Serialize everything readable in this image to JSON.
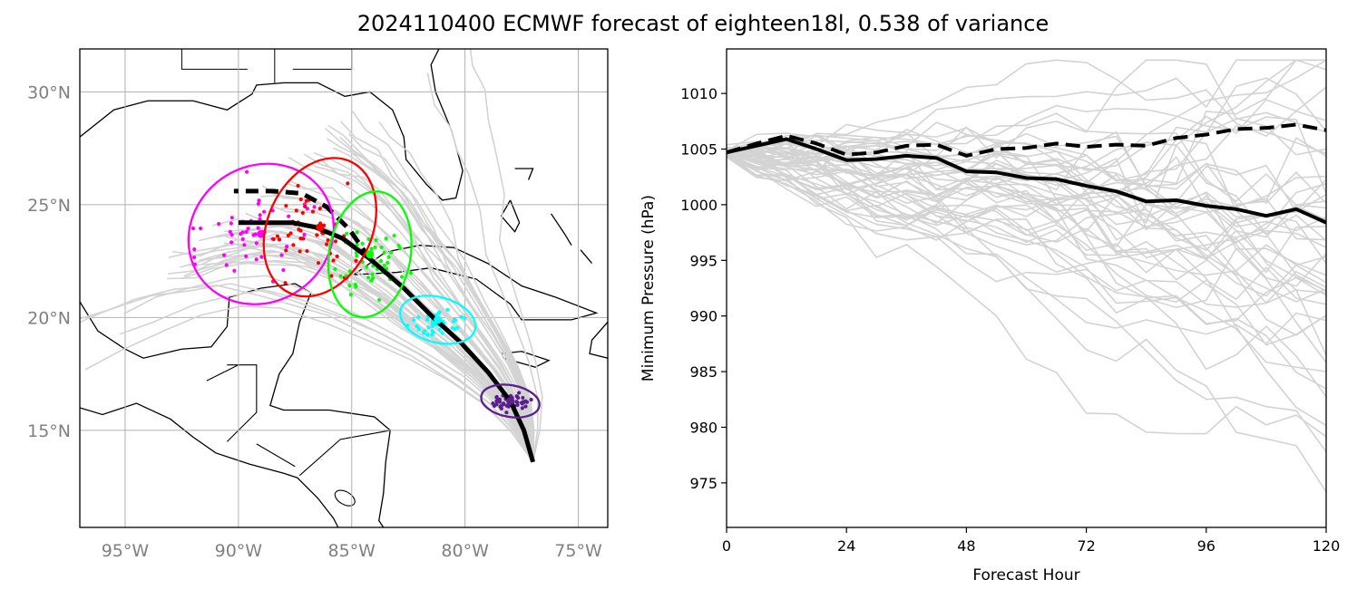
{
  "title": "2024110400 ECMWF forecast of eighteen18l, 0.538 of variance",
  "colors": {
    "ensemble": "#d3d3d3",
    "mean": "#000000",
    "ellipses": [
      "#ff00ff",
      "#ff0000",
      "#00ff00",
      "#00ffff",
      "#5b1f8c"
    ],
    "grid": "#b0b0b0",
    "map_ticks": "#808080"
  },
  "chart_data": [
    {
      "type": "scatter",
      "name": "track-map",
      "xlim": [
        -97,
        -73.7
      ],
      "ylim": [
        10.7,
        31.9
      ],
      "xticks": [
        -95,
        -90,
        -85,
        -80,
        -75
      ],
      "xtick_labels": [
        "95°W",
        "90°W",
        "85°W",
        "80°W",
        "75°W"
      ],
      "yticks": [
        15,
        20,
        25,
        30
      ],
      "ytick_labels": [
        "15°N",
        "20°N",
        "25°N",
        "30°N"
      ],
      "grid": true,
      "mean_tracks": [
        {
          "style": "solid",
          "points": [
            [
              -77.0,
              13.6
            ],
            [
              -77.4,
              15.0
            ],
            [
              -78.0,
              16.3
            ],
            [
              -79.0,
              17.6
            ],
            [
              -80.2,
              18.9
            ],
            [
              -81.4,
              20.0
            ],
            [
              -82.7,
              21.3
            ],
            [
              -84.2,
              22.6
            ],
            [
              -85.4,
              23.5
            ],
            [
              -86.6,
              24.0
            ],
            [
              -87.6,
              24.2
            ],
            [
              -89.0,
              24.2
            ],
            [
              -90.0,
              24.2
            ]
          ]
        },
        {
          "style": "dashed",
          "points": [
            [
              -84.2,
              22.6
            ],
            [
              -85.1,
              23.9
            ],
            [
              -86.1,
              24.9
            ],
            [
              -87.2,
              25.5
            ],
            [
              -88.5,
              25.6
            ],
            [
              -89.6,
              25.6
            ],
            [
              -90.2,
              25.6
            ]
          ]
        }
      ],
      "ellipses": [
        {
          "center": [
            -89.0,
            23.7
          ],
          "rx": 3.3,
          "ry": 3.0,
          "angle": -35
        },
        {
          "center": [
            -86.4,
            24.0
          ],
          "rx": 2.3,
          "ry": 3.2,
          "angle": 25
        },
        {
          "center": [
            -84.2,
            22.8
          ],
          "rx": 1.8,
          "ry": 2.8,
          "angle": 10
        },
        {
          "center": [
            -81.2,
            19.9
          ],
          "rx": 1.7,
          "ry": 1.0,
          "angle": 15
        },
        {
          "center": [
            -78.0,
            16.3
          ],
          "rx": 1.3,
          "ry": 0.7,
          "angle": 10
        }
      ],
      "point_clusters": [
        {
          "center": [
            -89.5,
            24.0
          ],
          "spread": [
            2.2,
            2.1
          ],
          "count": 50
        },
        {
          "center": [
            -86.8,
            23.8
          ],
          "spread": [
            1.8,
            1.9
          ],
          "count": 50
        },
        {
          "center": [
            -84.2,
            22.5
          ],
          "spread": [
            1.2,
            1.4
          ],
          "count": 50
        },
        {
          "center": [
            -81.2,
            19.8
          ],
          "spread": [
            0.9,
            0.5
          ],
          "count": 50
        },
        {
          "center": [
            -78.0,
            16.3
          ],
          "spread": [
            0.8,
            0.35
          ],
          "count": 50
        }
      ]
    },
    {
      "type": "line",
      "name": "pressure",
      "xlabel": "Forecast Hour",
      "ylabel": "Minimum Pressure (hPa)",
      "xlim": [
        0,
        120
      ],
      "ylim": [
        971,
        1014
      ],
      "xticks": [
        0,
        24,
        48,
        72,
        96,
        120
      ],
      "yticks": [
        975,
        980,
        985,
        990,
        995,
        1000,
        1005,
        1010
      ],
      "x": [
        0,
        6,
        12,
        18,
        24,
        30,
        36,
        42,
        48,
        54,
        60,
        66,
        72,
        78,
        84,
        90,
        96,
        102,
        108,
        114,
        120
      ],
      "series": [
        {
          "style": "solid",
          "values": [
            1004.7,
            1005.3,
            1005.9,
            1005.0,
            1004.0,
            1004.1,
            1004.4,
            1004.2,
            1003.0,
            1002.9,
            1002.4,
            1002.3,
            1001.7,
            1001.2,
            1000.3,
            1000.4,
            999.9,
            999.6,
            999.0,
            999.6,
            998.4
          ]
        },
        {
          "style": "dashed",
          "values": [
            1004.7,
            1005.5,
            1006.2,
            1005.5,
            1004.5,
            1004.7,
            1005.3,
            1005.4,
            1004.4,
            1005.0,
            1005.1,
            1005.5,
            1005.2,
            1005.4,
            1005.3,
            1006.0,
            1006.3,
            1006.8,
            1006.9,
            1007.2,
            1006.7
          ]
        }
      ],
      "ensemble_count": 50
    }
  ]
}
